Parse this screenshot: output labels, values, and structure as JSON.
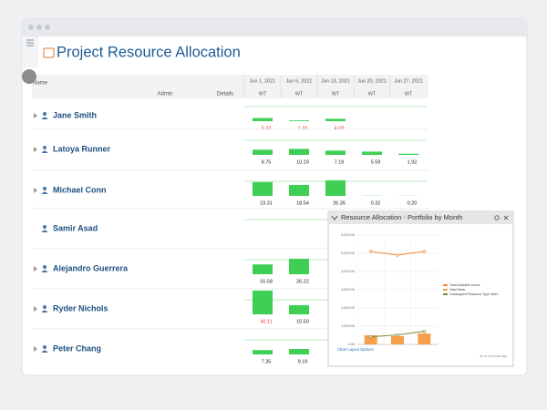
{
  "window": {
    "title": "Project Resource Allocation"
  },
  "table": {
    "columns": [
      "Name",
      "Admin",
      "Details"
    ],
    "dates": [
      "Jun 1, 2021",
      "Jun 6, 2021",
      "Jun 13, 2021",
      "Jun 20, 2021",
      "Jun 27, 2021"
    ],
    "subheader": "WT",
    "rows": [
      {
        "name": "Jane Smith",
        "values": [
          5.33,
          1.33,
          4.08,
          null,
          null
        ],
        "value_labels": [
          "5.33",
          "1.33",
          "4.08",
          null,
          null
        ],
        "label_colors": [
          "#e53935",
          "#e53935",
          "#e53935",
          null,
          null
        ]
      },
      {
        "name": "Latoya Runner",
        "values": [
          8.75,
          10.19,
          7.19,
          5.59,
          1.92
        ],
        "value_labels": [
          "8.75",
          "10.19",
          "7.19",
          "5.59",
          "1.92"
        ],
        "label_colors": [
          "#222",
          "#222",
          "#222",
          "#222",
          "#222"
        ]
      },
      {
        "name": "Michael Conn",
        "values": [
          23.31,
          18.54,
          26.35,
          0.32,
          0.2
        ],
        "value_labels": [
          "23.31",
          "18.54",
          "26.35",
          "0.32",
          "0.20"
        ],
        "label_colors": [
          "#222",
          "#222",
          "#222",
          "#222",
          "#222"
        ]
      },
      {
        "name": "Samir Asad",
        "values": [
          null,
          null,
          null,
          null,
          null
        ],
        "value_labels": [
          null,
          null,
          null,
          null,
          null
        ],
        "label_colors": [
          null,
          null,
          null,
          null,
          null
        ]
      },
      {
        "name": "Alejandro Guerrera",
        "values": [
          16.58,
          26.22,
          null,
          null,
          null
        ],
        "value_labels": [
          "16.58",
          "26.22",
          null,
          null,
          null
        ],
        "label_colors": [
          "#222",
          "#222",
          null,
          null,
          null
        ]
      },
      {
        "name": "Ryder Nichols",
        "values": [
          40.11,
          15.5,
          null,
          null,
          null
        ],
        "value_labels": [
          "40.11",
          "15.50",
          null,
          null,
          null
        ],
        "label_colors": [
          "#e53935",
          "#222",
          null,
          null,
          null
        ]
      },
      {
        "name": "Peter Chang",
        "values": [
          7.35,
          9.19,
          null,
          null,
          null
        ],
        "value_labels": [
          "7.35",
          "9.19",
          null,
          null,
          null
        ],
        "label_colors": [
          "#222",
          "#222",
          null,
          null,
          null
        ]
      }
    ]
  },
  "popup": {
    "title": "Resource Allocation - Portfolio by Month",
    "link": "Chart Layout Options",
    "footnote": "as of 2 minutes ago",
    "chart_data": {
      "type": "combo",
      "categories": [
        null,
        null,
        null
      ],
      "series": [
        {
          "name": "Total Available Hours",
          "kind": "line",
          "color": "#f08a3c",
          "values": [
            5100,
            4900,
            5100
          ]
        },
        {
          "name": "Total Work",
          "kind": "bar",
          "color": "#f5a04a",
          "values": [
            500,
            450,
            600
          ]
        },
        {
          "name": "Unassigned Resource Type Work",
          "kind": "line",
          "color": "#7a8b3a",
          "values": [
            420,
            520,
            720
          ]
        }
      ],
      "ylim": [
        0,
        6000
      ],
      "yticks": [
        {
          "value": 0,
          "label": "0.00"
        },
        {
          "value": 1000,
          "label": "1,000.00"
        },
        {
          "value": 2000,
          "label": "2,000.00"
        },
        {
          "value": 3000,
          "label": "3,000.00"
        },
        {
          "value": 4000,
          "label": "4,000.00"
        },
        {
          "value": 5000,
          "label": "5,000.00"
        },
        {
          "value": 6000,
          "label": "6,000.00"
        }
      ],
      "grid": true
    }
  }
}
